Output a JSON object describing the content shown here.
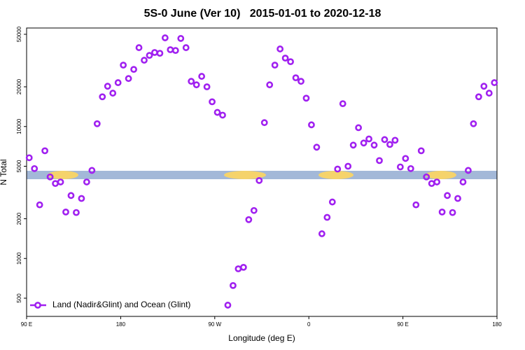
{
  "chart_data": {
    "type": "scatter",
    "title": "5S-0 June (Ver 10)   2015-01-01 to 2020-12-18",
    "x_label": "Longitude (deg E)",
    "y_label": "N Total",
    "log_y": true,
    "legend": "bottom-left",
    "xlim": [
      90,
      540
    ],
    "ylim": [
      364,
      55800
    ],
    "xticks": [
      {
        "value": 90,
        "label": "90 E"
      },
      180,
      {
        "value": 270,
        "label": "90 W"
      },
      {
        "value": 360,
        "label": "0"
      },
      {
        "value": 450,
        "label": "90 E"
      },
      {
        "value": 540,
        "label": "180"
      }
    ],
    "yticks": [
      500,
      1000,
      2000,
      5000,
      10000,
      20000,
      50000
    ],
    "series": [
      {
        "name": "Land (Nadir&Glint) and Ocean (Glint)",
        "color": "#a020f0",
        "x": [
          92.5,
          97.5,
          102.5,
          107.5,
          112.5,
          117.5,
          122.5,
          127.5,
          132.5,
          137.5,
          142.5,
          147.5,
          152.5,
          157.5,
          162.5,
          167.5,
          172.5,
          177.5,
          182.5,
          187.5,
          192.5,
          197.5,
          202.5,
          207.5,
          212.5,
          217.5,
          222.5,
          227.5,
          232.5,
          237.5,
          242.5,
          247.5,
          252.5,
          257.5,
          262.5,
          267.5,
          272.5,
          277.5,
          282.5,
          287.5,
          292.5,
          297.5,
          302.5,
          307.5,
          312.5,
          317.5,
          322.5,
          327.5,
          332.5,
          337.5,
          342.5,
          347.5,
          352.5,
          357.5,
          362.5,
          367.5,
          372.5,
          377.5,
          382.5,
          387.5,
          392.5,
          397.5,
          402.5,
          407.5,
          412.5,
          417.5,
          422.5,
          427.5,
          432.5,
          437.5,
          442.5,
          447.5,
          452.5,
          457.5,
          462.5,
          467.5,
          472.5,
          477.5,
          482.5,
          487.5,
          492.5,
          497.5,
          502.5,
          507.5,
          512.5,
          517.5,
          522.5,
          527.5,
          532.5,
          537.5
        ],
        "values": [
          5800,
          4800,
          2550,
          6550,
          4150,
          3700,
          3800,
          2250,
          3000,
          2230,
          2850,
          3800,
          4650,
          10500,
          16800,
          20200,
          17900,
          21500,
          29200,
          23100,
          27100,
          39600,
          31800,
          34600,
          36400,
          35900,
          47000,
          38200,
          37700,
          46500,
          39600,
          22000,
          20700,
          24000,
          20000,
          15400,
          12800,
          12200,
          443,
          624,
          835,
          857,
          1970,
          2310,
          3900,
          10700,
          20700,
          29200,
          38700,
          33000,
          31000,
          23400,
          22000,
          16400,
          10300,
          6970,
          1540,
          2050,
          2680,
          4760,
          14900,
          5000,
          7230,
          9800,
          7500,
          8050,
          7230,
          5520,
          7960,
          7310,
          7870,
          4940,
          5730,
          4800,
          2550,
          6550,
          4150,
          3700,
          3800,
          2250,
          3000,
          2230,
          2850,
          3800,
          4650,
          10500,
          16800,
          20200,
          17900,
          21500
        ]
      }
    ]
  }
}
